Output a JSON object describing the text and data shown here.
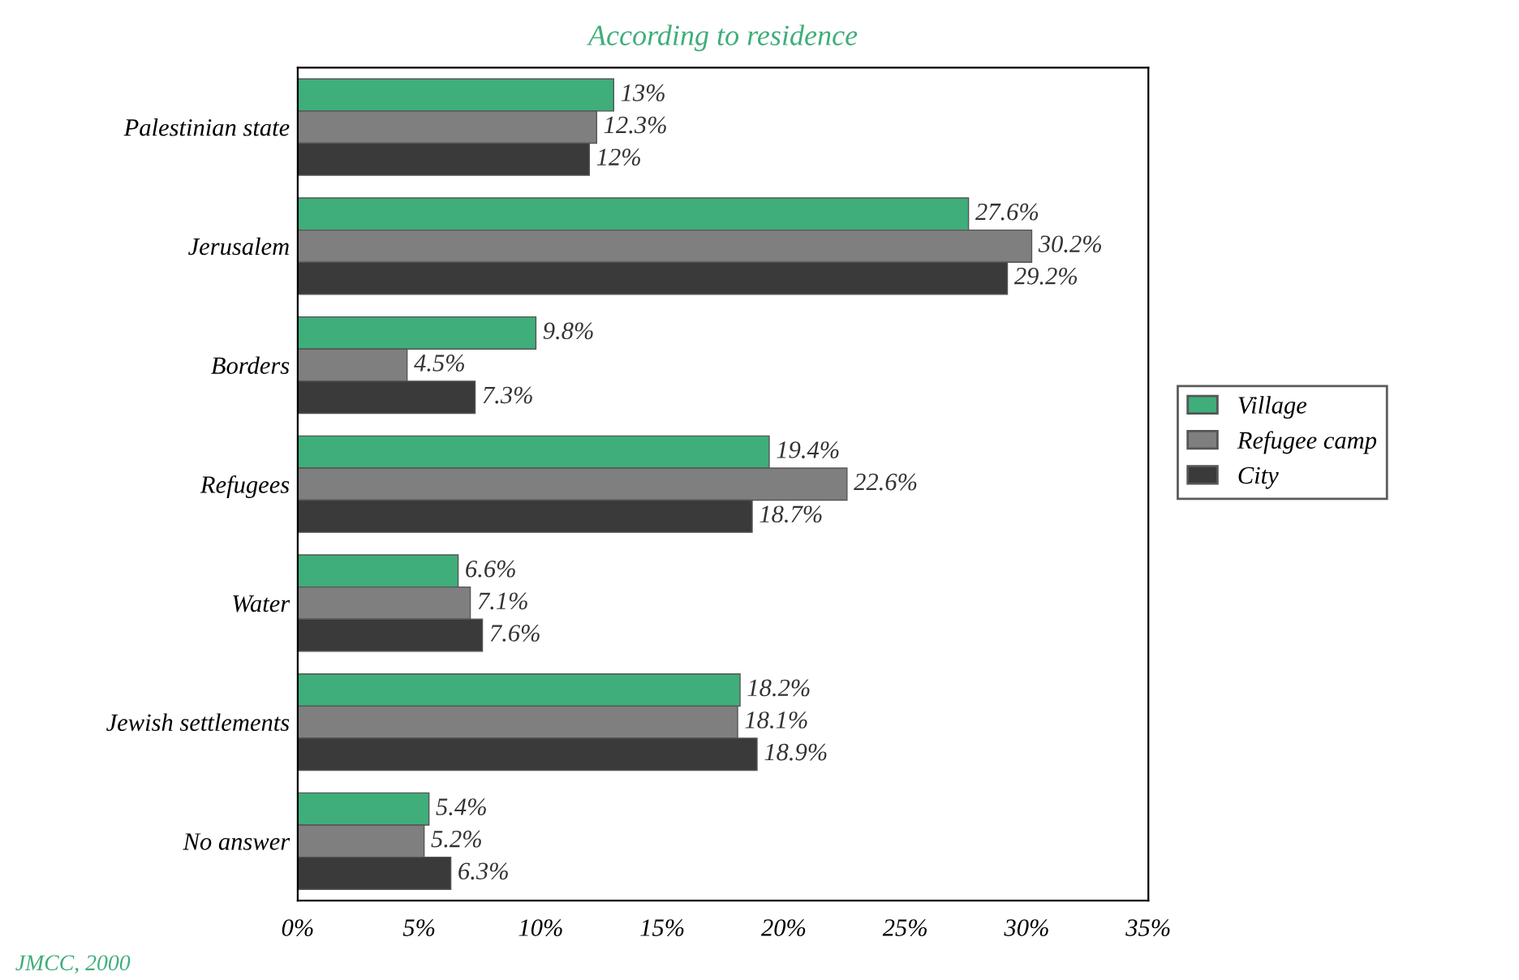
{
  "chart_data": {
    "type": "bar",
    "orientation": "horizontal",
    "title": "According to residence",
    "categories": [
      "Palestinian state",
      "Jerusalem",
      "Borders",
      "Refugees",
      "Water",
      "Jewish settlements",
      "No answer"
    ],
    "series": [
      {
        "name": "Village",
        "color": "#3fae7a",
        "values": [
          13,
          27.6,
          9.8,
          19.4,
          6.6,
          18.2,
          5.4
        ],
        "value_labels": [
          "13%",
          "27.6%",
          "9.8%",
          "19.4%",
          "6.6%",
          "18.2%",
          "5.4%"
        ]
      },
      {
        "name": "Refugee camp",
        "color": "#7f7f7f",
        "values": [
          12.3,
          30.2,
          4.5,
          22.6,
          7.1,
          18.1,
          5.2
        ],
        "value_labels": [
          "12.3%",
          "30.2%",
          "4.5%",
          "22.6%",
          "7.1%",
          "18.1%",
          "5.2%"
        ]
      },
      {
        "name": "City",
        "color": "#3a3a3a",
        "values": [
          12,
          29.2,
          7.3,
          18.7,
          7.6,
          18.9,
          6.3
        ],
        "value_labels": [
          "12%",
          "29.2%",
          "7.3%",
          "18.7%",
          "7.6%",
          "18.9%",
          "6.3%"
        ]
      }
    ],
    "xlim": [
      0,
      35
    ],
    "xticks": [
      {
        "value": 0,
        "label": "0%"
      },
      {
        "value": 5,
        "label": "5%"
      },
      {
        "value": 10,
        "label": "10%"
      },
      {
        "value": 15,
        "label": "15%"
      },
      {
        "value": 20,
        "label": "20%"
      },
      {
        "value": 25,
        "label": "25%"
      },
      {
        "value": 30,
        "label": "30%"
      },
      {
        "value": 35,
        "label": "35%"
      }
    ],
    "grid": false,
    "legend": "right",
    "annotations": [
      "JMCC, 2000"
    ]
  }
}
